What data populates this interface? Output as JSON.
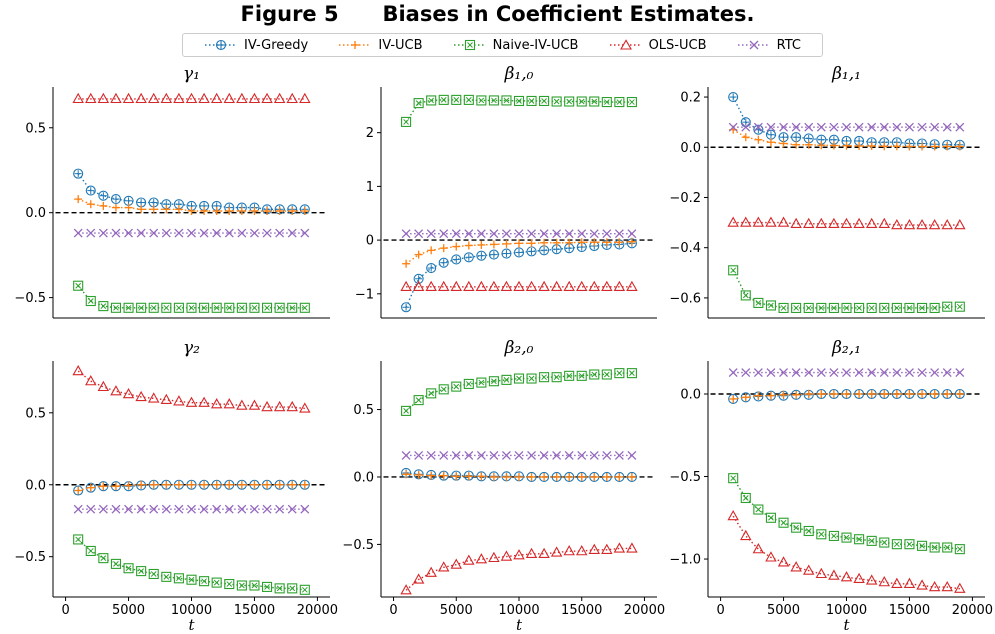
{
  "figure": {
    "title": "Figure 5      Biases in Coefficient Estimates."
  },
  "legend": [
    {
      "name": "IV-Greedy",
      "color": "#1f77b4",
      "marker": "circle-plus"
    },
    {
      "name": "IV-UCB",
      "color": "#ff7f0e",
      "marker": "plus"
    },
    {
      "name": "Naive-IV-UCB",
      "color": "#2ca02c",
      "marker": "square-x"
    },
    {
      "name": "OLS-UCB",
      "color": "#d62728",
      "marker": "triangle"
    },
    {
      "name": "RTC",
      "color": "#9467bd",
      "marker": "x"
    }
  ],
  "chart_data": [
    {
      "type": "line",
      "title": "γ₁",
      "xlabel": "",
      "x": [
        1000,
        2000,
        3000,
        4000,
        5000,
        6000,
        7000,
        8000,
        9000,
        10000,
        11000,
        12000,
        13000,
        14000,
        15000,
        16000,
        17000,
        18000,
        19000
      ],
      "ylim": [
        -0.62,
        0.74
      ],
      "yticks": [
        -0.5,
        0.0,
        0.5
      ],
      "ytick_labels": [
        "−0.5",
        "0.0",
        "0.5"
      ],
      "xticks": [],
      "xtick_labels": [],
      "zero_line": true,
      "series": [
        {
          "name": "IV-Greedy",
          "values": [
            0.23,
            0.13,
            0.1,
            0.08,
            0.07,
            0.06,
            0.06,
            0.05,
            0.05,
            0.04,
            0.04,
            0.04,
            0.03,
            0.03,
            0.03,
            0.02,
            0.02,
            0.02,
            0.02
          ]
        },
        {
          "name": "IV-UCB",
          "values": [
            0.08,
            0.05,
            0.04,
            0.03,
            0.03,
            0.02,
            0.02,
            0.02,
            0.02,
            0.01,
            0.01,
            0.01,
            0.01,
            0.01,
            0.01,
            0.01,
            0.01,
            0.01,
            0.01
          ]
        },
        {
          "name": "Naive-IV-UCB",
          "values": [
            -0.43,
            -0.52,
            -0.55,
            -0.56,
            -0.56,
            -0.56,
            -0.56,
            -0.56,
            -0.56,
            -0.56,
            -0.56,
            -0.56,
            -0.56,
            -0.56,
            -0.56,
            -0.56,
            -0.56,
            -0.56,
            -0.56
          ]
        },
        {
          "name": "OLS-UCB",
          "values": [
            0.67,
            0.67,
            0.67,
            0.67,
            0.67,
            0.67,
            0.67,
            0.67,
            0.67,
            0.67,
            0.67,
            0.67,
            0.67,
            0.67,
            0.67,
            0.67,
            0.67,
            0.67,
            0.67
          ]
        },
        {
          "name": "RTC",
          "values": [
            -0.12,
            -0.12,
            -0.12,
            -0.12,
            -0.12,
            -0.12,
            -0.12,
            -0.12,
            -0.12,
            -0.12,
            -0.12,
            -0.12,
            -0.12,
            -0.12,
            -0.12,
            -0.12,
            -0.12,
            -0.12,
            -0.12
          ]
        }
      ]
    },
    {
      "type": "line",
      "title": "β₁,₀",
      "xlabel": "",
      "x": [
        1000,
        2000,
        3000,
        4000,
        5000,
        6000,
        7000,
        8000,
        9000,
        10000,
        11000,
        12000,
        13000,
        14000,
        15000,
        16000,
        17000,
        18000,
        19000
      ],
      "ylim": [
        -1.45,
        2.85
      ],
      "yticks": [
        -1,
        0,
        1,
        2
      ],
      "ytick_labels": [
        "−1",
        "0",
        "1",
        "2"
      ],
      "xticks": [],
      "xtick_labels": [],
      "zero_line": true,
      "series": [
        {
          "name": "IV-Greedy",
          "values": [
            -1.25,
            -0.72,
            -0.52,
            -0.42,
            -0.36,
            -0.32,
            -0.29,
            -0.27,
            -0.25,
            -0.23,
            -0.21,
            -0.19,
            -0.17,
            -0.15,
            -0.13,
            -0.11,
            -0.09,
            -0.08,
            -0.06
          ]
        },
        {
          "name": "IV-UCB",
          "values": [
            -0.44,
            -0.27,
            -0.19,
            -0.15,
            -0.12,
            -0.1,
            -0.09,
            -0.08,
            -0.07,
            -0.06,
            -0.06,
            -0.05,
            -0.05,
            -0.05,
            -0.04,
            -0.04,
            -0.04,
            -0.04,
            -0.03
          ]
        },
        {
          "name": "Naive-IV-UCB",
          "values": [
            2.2,
            2.55,
            2.6,
            2.61,
            2.61,
            2.61,
            2.6,
            2.6,
            2.6,
            2.59,
            2.59,
            2.59,
            2.58,
            2.58,
            2.58,
            2.58,
            2.57,
            2.57,
            2.57
          ]
        },
        {
          "name": "OLS-UCB",
          "values": [
            -0.87,
            -0.87,
            -0.87,
            -0.87,
            -0.87,
            -0.87,
            -0.87,
            -0.87,
            -0.87,
            -0.87,
            -0.87,
            -0.87,
            -0.87,
            -0.87,
            -0.87,
            -0.87,
            -0.87,
            -0.87,
            -0.87
          ]
        },
        {
          "name": "RTC",
          "values": [
            0.12,
            0.12,
            0.12,
            0.12,
            0.12,
            0.12,
            0.12,
            0.12,
            0.12,
            0.12,
            0.12,
            0.12,
            0.12,
            0.12,
            0.12,
            0.12,
            0.12,
            0.12,
            0.12
          ]
        }
      ]
    },
    {
      "type": "line",
      "title": "β₁,₁",
      "xlabel": "",
      "x": [
        1000,
        2000,
        3000,
        4000,
        5000,
        6000,
        7000,
        8000,
        9000,
        10000,
        11000,
        12000,
        13000,
        14000,
        15000,
        16000,
        17000,
        18000,
        19000
      ],
      "ylim": [
        -0.68,
        0.24
      ],
      "yticks": [
        -0.6,
        -0.4,
        -0.2,
        0.0,
        0.2
      ],
      "ytick_labels": [
        "−0.6",
        "−0.4",
        "−0.2",
        "0.0",
        "0.2"
      ],
      "xticks": [],
      "xtick_labels": [],
      "zero_line": true,
      "series": [
        {
          "name": "IV-Greedy",
          "values": [
            0.2,
            0.1,
            0.07,
            0.05,
            0.04,
            0.04,
            0.035,
            0.03,
            0.03,
            0.025,
            0.025,
            0.02,
            0.02,
            0.02,
            0.015,
            0.015,
            0.012,
            0.01,
            0.01
          ]
        },
        {
          "name": "IV-UCB",
          "values": [
            0.07,
            0.04,
            0.03,
            0.02,
            0.015,
            0.01,
            0.01,
            0.008,
            0.007,
            0.006,
            0.005,
            0.005,
            0.004,
            0.004,
            0.003,
            0.003,
            0.003,
            0.003,
            0.003
          ]
        },
        {
          "name": "Naive-IV-UCB",
          "values": [
            -0.49,
            -0.59,
            -0.62,
            -0.63,
            -0.64,
            -0.64,
            -0.64,
            -0.64,
            -0.64,
            -0.64,
            -0.64,
            -0.64,
            -0.64,
            -0.64,
            -0.64,
            -0.64,
            -0.64,
            -0.635,
            -0.635
          ]
        },
        {
          "name": "OLS-UCB",
          "values": [
            -0.3,
            -0.3,
            -0.3,
            -0.3,
            -0.3,
            -0.305,
            -0.305,
            -0.305,
            -0.305,
            -0.305,
            -0.305,
            -0.305,
            -0.305,
            -0.31,
            -0.31,
            -0.31,
            -0.31,
            -0.31,
            -0.31
          ]
        },
        {
          "name": "RTC",
          "values": [
            0.08,
            0.08,
            0.08,
            0.08,
            0.08,
            0.08,
            0.08,
            0.08,
            0.08,
            0.08,
            0.08,
            0.08,
            0.08,
            0.08,
            0.08,
            0.08,
            0.08,
            0.08,
            0.08
          ]
        }
      ]
    },
    {
      "type": "line",
      "title": "γ₂",
      "xlabel": "t",
      "x": [
        1000,
        2000,
        3000,
        4000,
        5000,
        6000,
        7000,
        8000,
        9000,
        10000,
        11000,
        12000,
        13000,
        14000,
        15000,
        16000,
        17000,
        18000,
        19000
      ],
      "ylim": [
        -0.78,
        0.86
      ],
      "yticks": [
        -0.5,
        0.0,
        0.5
      ],
      "ytick_labels": [
        "−0.5",
        "0.0",
        "0.5"
      ],
      "xticks": [
        0,
        5000,
        10000,
        15000,
        20000
      ],
      "xtick_labels": [
        "0",
        "5000",
        "10000",
        "15000",
        "20000"
      ],
      "zero_line": true,
      "series": [
        {
          "name": "IV-Greedy",
          "values": [
            -0.04,
            -0.02,
            -0.01,
            -0.01,
            -0.01,
            -0.005,
            0,
            0,
            0,
            0,
            0,
            0,
            0,
            0,
            0,
            0,
            0,
            0,
            0
          ]
        },
        {
          "name": "IV-UCB",
          "values": [
            -0.04,
            -0.02,
            -0.01,
            -0.01,
            -0.005,
            0,
            0,
            0,
            0,
            0,
            0,
            0,
            0,
            0,
            0,
            0,
            0,
            0,
            0
          ]
        },
        {
          "name": "Naive-IV-UCB",
          "values": [
            -0.38,
            -0.46,
            -0.51,
            -0.55,
            -0.58,
            -0.6,
            -0.62,
            -0.64,
            -0.65,
            -0.66,
            -0.67,
            -0.68,
            -0.69,
            -0.7,
            -0.7,
            -0.71,
            -0.72,
            -0.72,
            -0.73
          ]
        },
        {
          "name": "OLS-UCB",
          "values": [
            0.79,
            0.72,
            0.68,
            0.65,
            0.63,
            0.61,
            0.6,
            0.59,
            0.58,
            0.57,
            0.57,
            0.56,
            0.56,
            0.55,
            0.55,
            0.54,
            0.54,
            0.54,
            0.53
          ]
        },
        {
          "name": "RTC",
          "values": [
            -0.17,
            -0.17,
            -0.17,
            -0.17,
            -0.17,
            -0.17,
            -0.17,
            -0.17,
            -0.17,
            -0.17,
            -0.17,
            -0.17,
            -0.17,
            -0.17,
            -0.17,
            -0.17,
            -0.17,
            -0.17,
            -0.17
          ]
        }
      ]
    },
    {
      "type": "line",
      "title": "β₂,₀",
      "xlabel": "t",
      "x": [
        1000,
        2000,
        3000,
        4000,
        5000,
        6000,
        7000,
        8000,
        9000,
        10000,
        11000,
        12000,
        13000,
        14000,
        15000,
        16000,
        17000,
        18000,
        19000
      ],
      "ylim": [
        -0.89,
        0.86
      ],
      "yticks": [
        -0.5,
        0.0,
        0.5
      ],
      "ytick_labels": [
        "−0.5",
        "0.0",
        "0.5"
      ],
      "xticks": [
        0,
        5000,
        10000,
        15000,
        20000
      ],
      "xtick_labels": [
        "0",
        "5000",
        "10000",
        "15000",
        "20000"
      ],
      "zero_line": true,
      "series": [
        {
          "name": "IV-Greedy",
          "values": [
            0.03,
            0.02,
            0.015,
            0.01,
            0.01,
            0.01,
            0.005,
            0.005,
            0.005,
            0.005,
            0,
            0,
            0,
            0,
            0,
            0,
            0,
            0,
            0
          ]
        },
        {
          "name": "IV-UCB",
          "values": [
            0.02,
            0.015,
            0.01,
            0.01,
            0.005,
            0.005,
            0.005,
            0,
            0,
            0,
            0,
            0,
            0,
            0,
            0,
            0,
            0,
            0,
            0
          ]
        },
        {
          "name": "Naive-IV-UCB",
          "values": [
            0.49,
            0.57,
            0.62,
            0.65,
            0.67,
            0.69,
            0.7,
            0.71,
            0.72,
            0.73,
            0.73,
            0.74,
            0.74,
            0.75,
            0.75,
            0.76,
            0.76,
            0.77,
            0.77
          ]
        },
        {
          "name": "OLS-UCB",
          "values": [
            -0.84,
            -0.76,
            -0.71,
            -0.67,
            -0.65,
            -0.62,
            -0.61,
            -0.6,
            -0.59,
            -0.58,
            -0.57,
            -0.57,
            -0.56,
            -0.55,
            -0.55,
            -0.54,
            -0.54,
            -0.53,
            -0.53
          ]
        },
        {
          "name": "RTC",
          "values": [
            0.16,
            0.16,
            0.16,
            0.16,
            0.16,
            0.16,
            0.16,
            0.16,
            0.16,
            0.16,
            0.16,
            0.16,
            0.16,
            0.16,
            0.16,
            0.16,
            0.16,
            0.16,
            0.16
          ]
        }
      ]
    },
    {
      "type": "line",
      "title": "β₂,₁",
      "xlabel": "t",
      "x": [
        1000,
        2000,
        3000,
        4000,
        5000,
        6000,
        7000,
        8000,
        9000,
        10000,
        11000,
        12000,
        13000,
        14000,
        15000,
        16000,
        17000,
        18000,
        19000
      ],
      "ylim": [
        -1.23,
        0.2
      ],
      "yticks": [
        -1.0,
        -0.5,
        0.0
      ],
      "ytick_labels": [
        "−1.0",
        "−0.5",
        "0.0"
      ],
      "xticks": [
        0,
        5000,
        10000,
        15000,
        20000
      ],
      "xtick_labels": [
        "0",
        "5000",
        "10000",
        "15000",
        "20000"
      ],
      "zero_line": true,
      "series": [
        {
          "name": "IV-Greedy",
          "values": [
            -0.03,
            -0.02,
            -0.015,
            -0.01,
            -0.01,
            -0.005,
            -0.005,
            0,
            0,
            0,
            0,
            0,
            0,
            0,
            0,
            0,
            0,
            0,
            0
          ]
        },
        {
          "name": "IV-UCB",
          "values": [
            -0.03,
            -0.02,
            -0.01,
            -0.01,
            -0.005,
            -0.005,
            0,
            0,
            0,
            0,
            0,
            0,
            0,
            0,
            0,
            0,
            0,
            0,
            0
          ]
        },
        {
          "name": "Naive-IV-UCB",
          "values": [
            -0.51,
            -0.63,
            -0.7,
            -0.75,
            -0.78,
            -0.81,
            -0.83,
            -0.85,
            -0.86,
            -0.87,
            -0.88,
            -0.89,
            -0.9,
            -0.91,
            -0.91,
            -0.92,
            -0.93,
            -0.93,
            -0.94
          ]
        },
        {
          "name": "OLS-UCB",
          "values": [
            -0.74,
            -0.86,
            -0.94,
            -0.99,
            -1.02,
            -1.05,
            -1.07,
            -1.09,
            -1.1,
            -1.11,
            -1.12,
            -1.13,
            -1.14,
            -1.15,
            -1.15,
            -1.16,
            -1.17,
            -1.17,
            -1.18
          ]
        },
        {
          "name": "RTC",
          "values": [
            0.13,
            0.13,
            0.13,
            0.13,
            0.13,
            0.13,
            0.13,
            0.13,
            0.13,
            0.13,
            0.13,
            0.13,
            0.13,
            0.13,
            0.13,
            0.13,
            0.13,
            0.13,
            0.13
          ]
        }
      ]
    }
  ]
}
